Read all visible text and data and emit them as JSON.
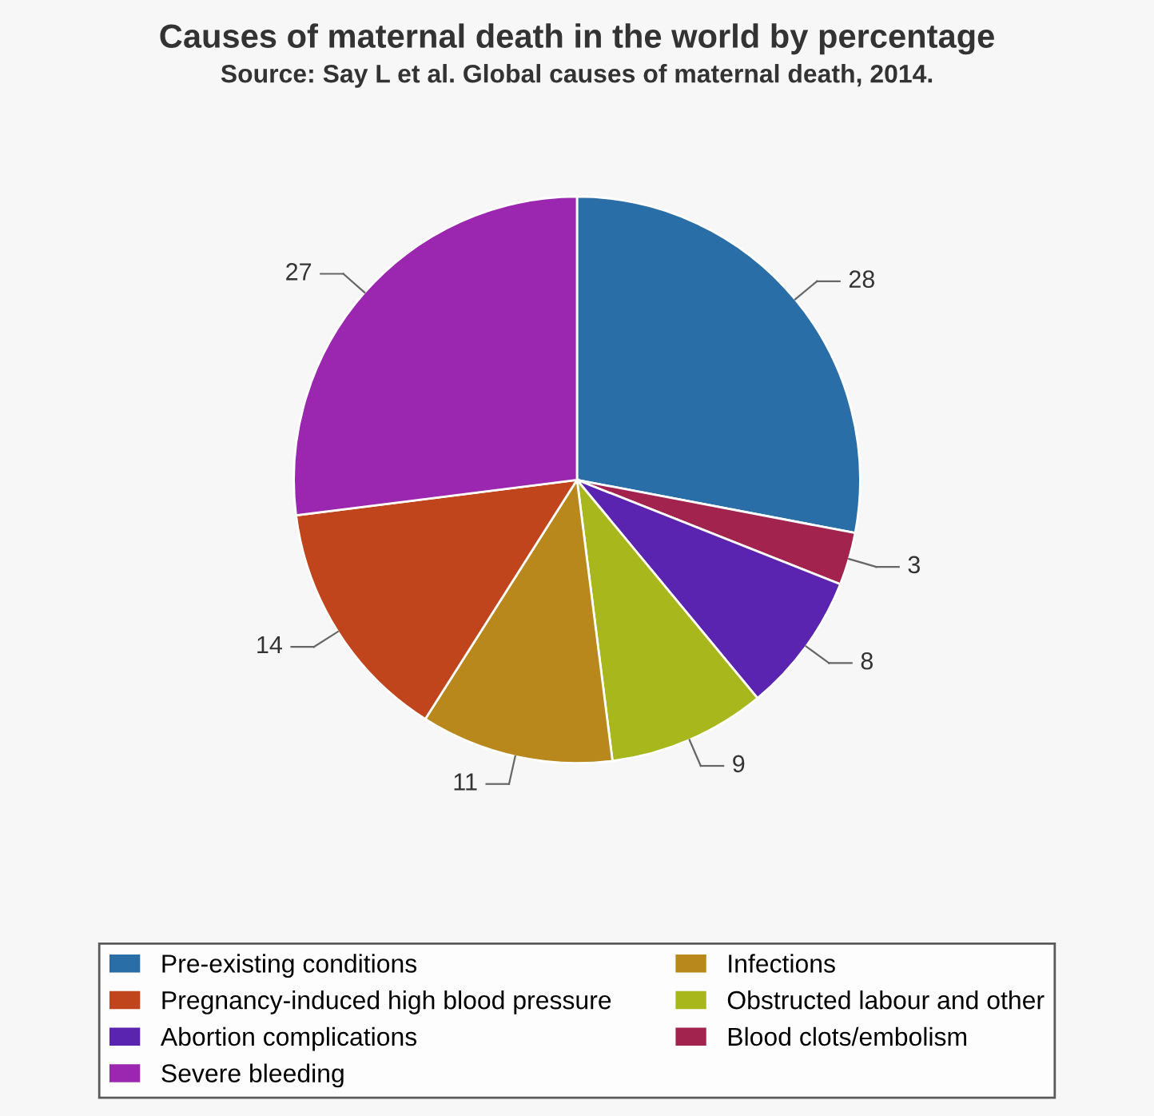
{
  "chart_data": {
    "type": "pie",
    "title": "Causes of maternal death in the world by percentage",
    "subtitle": "Source: Say L et al. Global causes of maternal death, 2014.",
    "categories": [
      "Pre-existing conditions",
      "Blood clots/embolism",
      "Abortion complications",
      "Obstructed labour and other",
      "Infections",
      "Pregnancy-induced high blood pressure",
      "Severe bleeding"
    ],
    "values": [
      28,
      3,
      8,
      9,
      11,
      14,
      27
    ],
    "colors": [
      "#2a6ea8",
      "#a3234f",
      "#5a24b0",
      "#a8b81c",
      "#b8881c",
      "#c0441c",
      "#9b26b0"
    ],
    "data_labels": true,
    "legend": "bottom"
  }
}
